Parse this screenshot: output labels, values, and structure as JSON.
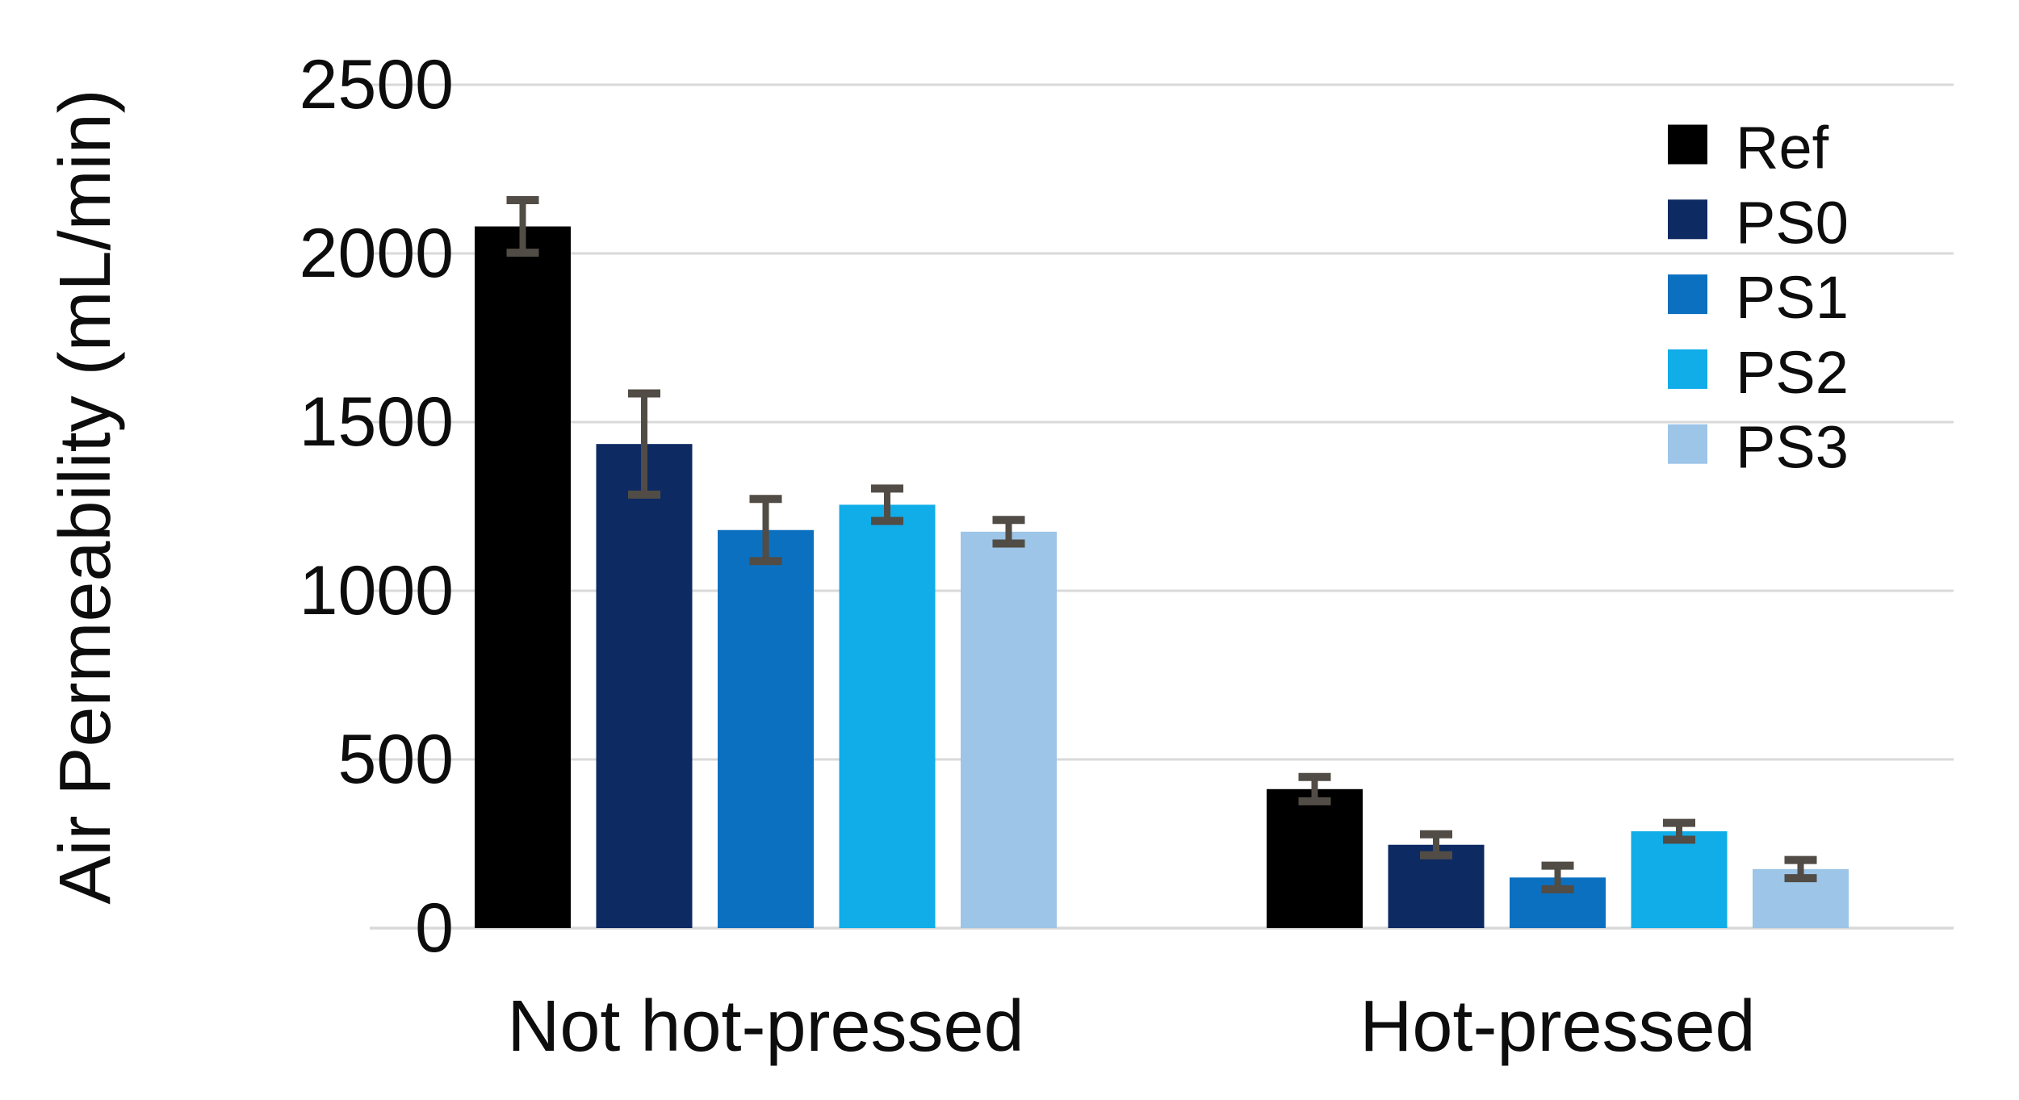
{
  "chart_data": {
    "type": "bar",
    "title": "",
    "ylabel": "Air Permeability (mL/min)",
    "xlabel": "",
    "categories": [
      "Not hot-pressed",
      "Hot-pressed"
    ],
    "series": [
      {
        "name": "Ref",
        "color": "#000000",
        "values": [
          2080,
          412
        ],
        "errors": [
          78,
          36
        ]
      },
      {
        "name": "PS0",
        "color": "#0E2A63",
        "values": [
          1435,
          247
        ],
        "errors": [
          150,
          31
        ]
      },
      {
        "name": "PS1",
        "color": "#0C70C0",
        "values": [
          1180,
          150
        ],
        "errors": [
          92,
          35
        ]
      },
      {
        "name": "PS2",
        "color": "#10ADE8",
        "values": [
          1255,
          287
        ],
        "errors": [
          48,
          25
        ]
      },
      {
        "name": "PS3",
        "color": "#9DC5E8",
        "values": [
          1175,
          175
        ],
        "errors": [
          35,
          27
        ]
      }
    ],
    "yticks": [
      0,
      500,
      1000,
      1500,
      2000,
      2500
    ],
    "ylim": [
      0,
      2500
    ],
    "grid": true,
    "grid_color": "#D9D9D9",
    "axis_line_color": "#D6D6D6",
    "error_bar_color": "#514C45",
    "text_color": "#0d0d0d",
    "legend_position": "top-right",
    "legend_labels": [
      "Ref",
      "PS0",
      "PS1",
      "PS2",
      "PS3"
    ]
  }
}
